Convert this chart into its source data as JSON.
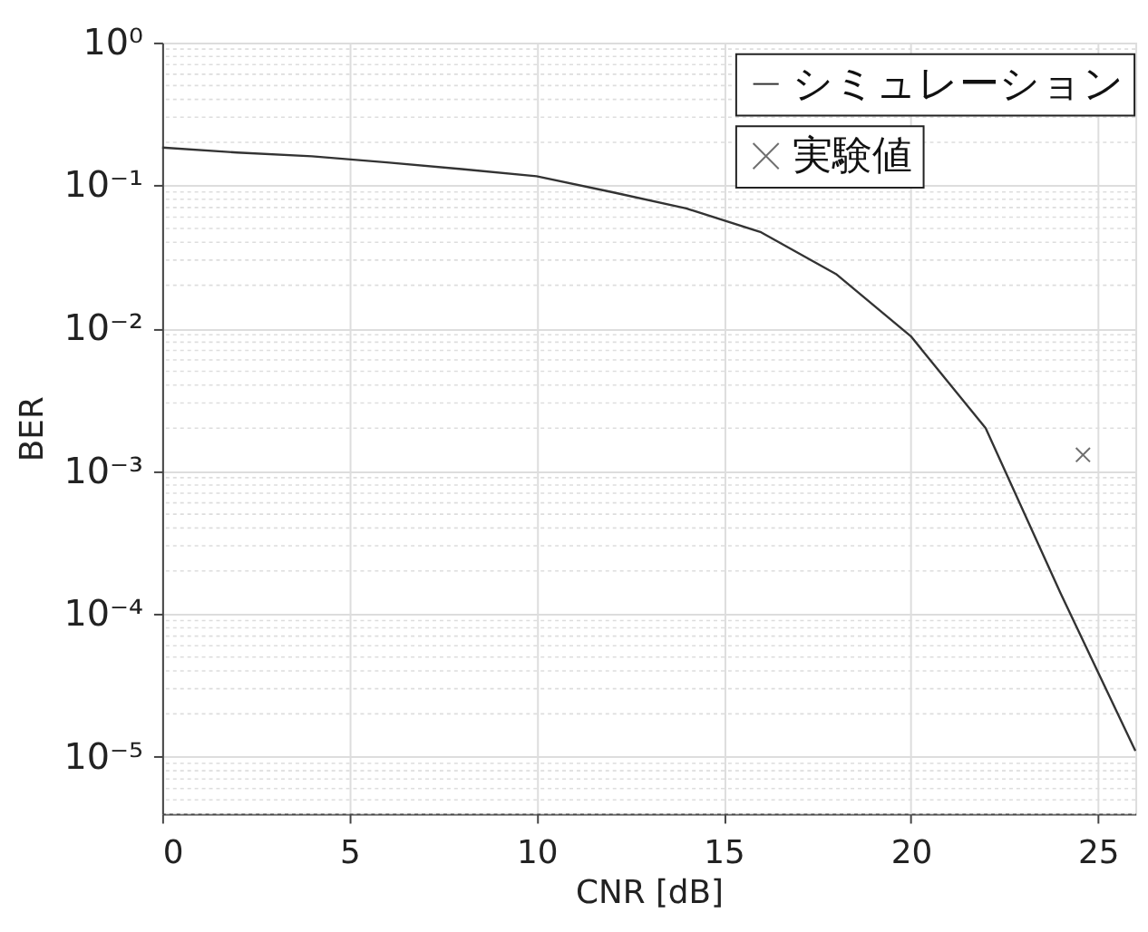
{
  "chart_data": {
    "type": "line",
    "xlabel": "CNR [dB]",
    "ylabel": "BER",
    "log": "y",
    "grid": true,
    "legend": "top right",
    "xlim": [
      0,
      26
    ],
    "xticks": [
      0,
      5,
      10,
      15,
      20,
      25
    ],
    "ylim": [
      4e-06,
      1
    ],
    "yticks": [
      {
        "value": 1e-05,
        "label": "10⁻⁵"
      },
      {
        "value": 0.0001,
        "label": "10⁻⁴"
      },
      {
        "value": 0.001,
        "label": "10⁻³"
      },
      {
        "value": 0.01,
        "label": "10⁻²"
      },
      {
        "value": 0.1,
        "label": "10⁻¹"
      },
      {
        "value": 1,
        "label": "10⁰"
      }
    ],
    "series": [
      {
        "name": "シミュレーション",
        "type": "line",
        "color": "#333333",
        "marker": "none",
        "line_style": "solid",
        "x": [
          0,
          2,
          4,
          6,
          8,
          10,
          12,
          14,
          16,
          18,
          20,
          22,
          24,
          26
        ],
        "values": [
          0.184,
          0.17,
          0.16,
          0.145,
          0.13,
          0.116,
          0.09,
          0.069,
          0.047,
          0.024,
          0.0088,
          0.002,
          0.00014,
          1.1e-05
        ]
      },
      {
        "name": "実験値",
        "type": "scatter",
        "color": "#333333",
        "marker": "cross",
        "x": [
          24.6
        ],
        "values": [
          0.0013
        ]
      }
    ]
  }
}
